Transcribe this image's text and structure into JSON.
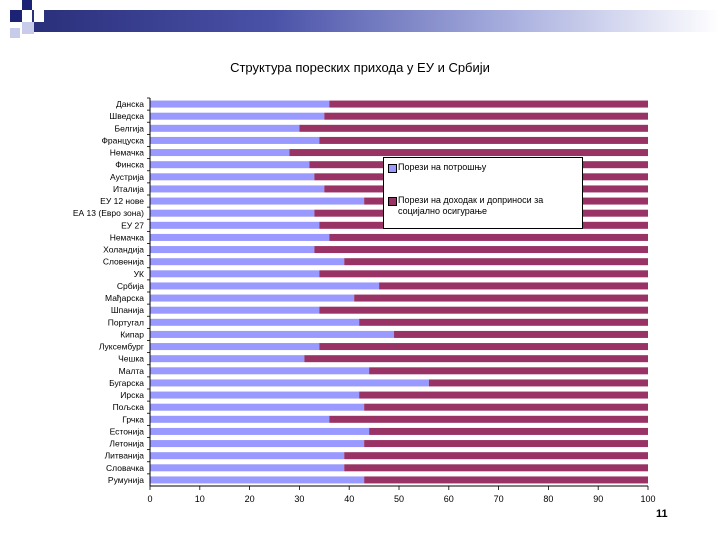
{
  "chart_data": {
    "type": "bar",
    "orientation": "horizontal",
    "stacked": "percent",
    "title": "Структура пореских прихода у ЕУ и Србији",
    "categories": [
      "Данска",
      "Шведска",
      "Белгија",
      "Француска",
      "Немачка",
      "Финска",
      "Аустрија",
      "Италија",
      "ЕУ 12 нове",
      "ЕА 13 (Евро зона)",
      "ЕУ 27",
      "Немачка",
      "Холандија",
      "Словенија",
      "УК",
      "Србија",
      "Мађарска",
      "Шпанија",
      "Португал",
      "Кипар",
      "Луксембург",
      "Чешка",
      "Малта",
      "Бугарска",
      "Ирска",
      "Пољска",
      "Грчка",
      "Естонија",
      "Летонија",
      "Литванија",
      "Словачка",
      "Румунија"
    ],
    "series": [
      {
        "name": "Порези на потрошњу",
        "color": "#9999FF",
        "values": [
          36,
          35,
          30,
          34,
          28,
          32,
          33,
          35,
          43,
          33,
          34,
          36,
          33,
          39,
          34,
          46,
          41,
          34,
          42,
          49,
          34,
          31,
          44,
          56,
          42,
          43,
          36,
          44,
          43,
          39,
          39,
          43
        ]
      },
      {
        "name": "Порези на доходак и доприноси за социјално осигурање",
        "color": "#993366",
        "values": [
          64,
          65,
          70,
          66,
          72,
          68,
          67,
          65,
          57,
          67,
          66,
          64,
          67,
          61,
          66,
          54,
          59,
          66,
          58,
          51,
          66,
          69,
          56,
          44,
          58,
          57,
          64,
          56,
          57,
          61,
          61,
          57
        ]
      }
    ],
    "xlim": [
      0,
      100
    ],
    "xticks": [
      0,
      10,
      20,
      30,
      40,
      50,
      60,
      70,
      80,
      90,
      100
    ],
    "grid": false,
    "legend_position": "right"
  },
  "page": {
    "number": "11"
  }
}
